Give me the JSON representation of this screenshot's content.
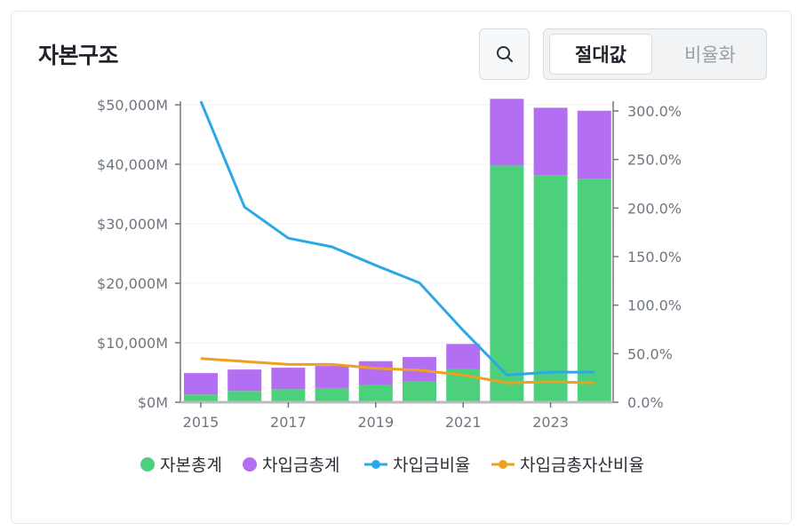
{
  "header": {
    "title": "자본구조",
    "search_icon": "search-icon",
    "toggle_options": [
      "절대값",
      "비율화"
    ],
    "active_toggle": "절대값"
  },
  "colors": {
    "equity": "#4cd07b",
    "debt": "#b36ef2",
    "debt_ratio": "#2ba8e6",
    "debt_to_assets": "#f0a020",
    "axis": "#6f7680",
    "grid": "#f0f1f3"
  },
  "chart_data": {
    "type": "bar",
    "x": [
      2015,
      2016,
      2017,
      2018,
      2019,
      2020,
      2021,
      2022,
      2023,
      2024
    ],
    "x_tick_labels": [
      "2015",
      "2017",
      "2019",
      "2021",
      "2023"
    ],
    "left_axis": {
      "ylim": [
        0,
        50000
      ],
      "ticks": [
        0,
        10000,
        20000,
        30000,
        40000,
        50000
      ],
      "tick_labels": [
        "$0M",
        "$10,000M",
        "$20,000M",
        "$30,000M",
        "$40,000M",
        "$50,000M"
      ]
    },
    "right_axis": {
      "ylim": [
        0,
        310
      ],
      "ticks": [
        0,
        50,
        100,
        150,
        200,
        250,
        300
      ],
      "tick_labels": [
        "0.0%",
        "50.0%",
        "100.0%",
        "150.0%",
        "200.0%",
        "250.0%",
        "300.0%"
      ]
    },
    "series": [
      {
        "name": "자본총계",
        "kind": "bar",
        "stack": "capital",
        "values": [
          1300,
          1900,
          2200,
          2400,
          2900,
          3500,
          5600,
          39800,
          38200,
          37600
        ]
      },
      {
        "name": "차입금총계",
        "kind": "bar",
        "stack": "capital",
        "values": [
          3600,
          3600,
          3600,
          3700,
          4000,
          4100,
          4200,
          11200,
          11300,
          11400
        ]
      },
      {
        "name": "차입금비율",
        "kind": "line",
        "axis": "right",
        "values": [
          310,
          201,
          169,
          160,
          141,
          123,
          74,
          28,
          31,
          31
        ]
      },
      {
        "name": "차입금총자산비율",
        "kind": "line",
        "axis": "right",
        "values": [
          45,
          42,
          39,
          39,
          35,
          33,
          28,
          20,
          21,
          20
        ]
      }
    ],
    "legend": [
      "자본총계",
      "차입금총계",
      "차입금비율",
      "차입금총자산비율"
    ],
    "legend_position": "bottom"
  }
}
